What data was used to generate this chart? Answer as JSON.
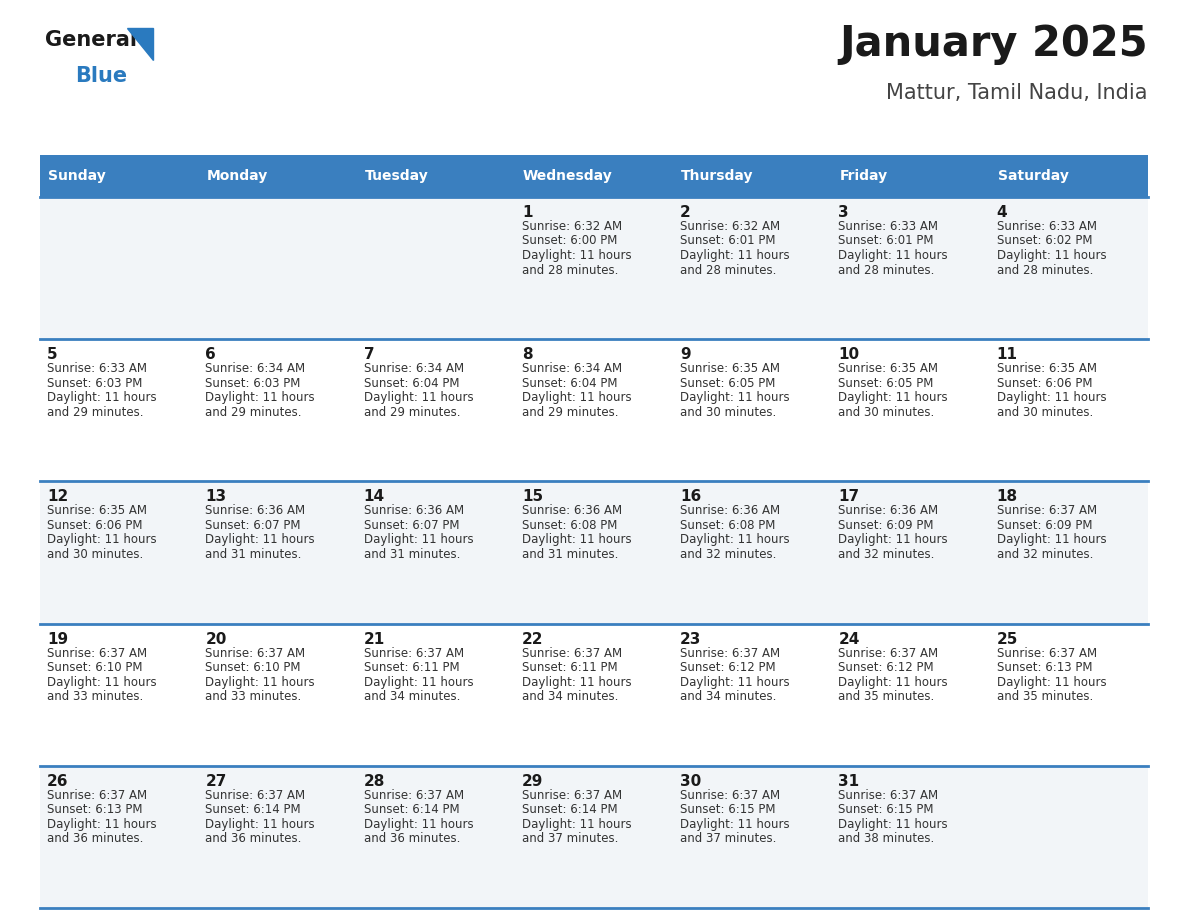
{
  "title": "January 2025",
  "subtitle": "Mattur, Tamil Nadu, India",
  "days_of_week": [
    "Sunday",
    "Monday",
    "Tuesday",
    "Wednesday",
    "Thursday",
    "Friday",
    "Saturday"
  ],
  "header_bg": "#3a7fbf",
  "header_text": "#ffffff",
  "row_bg_even": "#f2f5f8",
  "row_bg_odd": "#ffffff",
  "divider_color": "#3a7fbf",
  "day_number_color": "#1a1a1a",
  "cell_text_color": "#333333",
  "title_color": "#1a1a1a",
  "subtitle_color": "#444444",
  "logo_general_color": "#1a1a1a",
  "logo_blue_color": "#2a7abf",
  "figsize": [
    11.88,
    9.18
  ],
  "dpi": 100,
  "calendar_data": [
    [
      {
        "day": "",
        "sunrise": "",
        "sunset": "",
        "daylight": ""
      },
      {
        "day": "",
        "sunrise": "",
        "sunset": "",
        "daylight": ""
      },
      {
        "day": "",
        "sunrise": "",
        "sunset": "",
        "daylight": ""
      },
      {
        "day": "1",
        "sunrise": "6:32 AM",
        "sunset": "6:00 PM",
        "daylight": "11 hours and 28 minutes."
      },
      {
        "day": "2",
        "sunrise": "6:32 AM",
        "sunset": "6:01 PM",
        "daylight": "11 hours and 28 minutes."
      },
      {
        "day": "3",
        "sunrise": "6:33 AM",
        "sunset": "6:01 PM",
        "daylight": "11 hours and 28 minutes."
      },
      {
        "day": "4",
        "sunrise": "6:33 AM",
        "sunset": "6:02 PM",
        "daylight": "11 hours and 28 minutes."
      }
    ],
    [
      {
        "day": "5",
        "sunrise": "6:33 AM",
        "sunset": "6:03 PM",
        "daylight": "11 hours and 29 minutes."
      },
      {
        "day": "6",
        "sunrise": "6:34 AM",
        "sunset": "6:03 PM",
        "daylight": "11 hours and 29 minutes."
      },
      {
        "day": "7",
        "sunrise": "6:34 AM",
        "sunset": "6:04 PM",
        "daylight": "11 hours and 29 minutes."
      },
      {
        "day": "8",
        "sunrise": "6:34 AM",
        "sunset": "6:04 PM",
        "daylight": "11 hours and 29 minutes."
      },
      {
        "day": "9",
        "sunrise": "6:35 AM",
        "sunset": "6:05 PM",
        "daylight": "11 hours and 30 minutes."
      },
      {
        "day": "10",
        "sunrise": "6:35 AM",
        "sunset": "6:05 PM",
        "daylight": "11 hours and 30 minutes."
      },
      {
        "day": "11",
        "sunrise": "6:35 AM",
        "sunset": "6:06 PM",
        "daylight": "11 hours and 30 minutes."
      }
    ],
    [
      {
        "day": "12",
        "sunrise": "6:35 AM",
        "sunset": "6:06 PM",
        "daylight": "11 hours and 30 minutes."
      },
      {
        "day": "13",
        "sunrise": "6:36 AM",
        "sunset": "6:07 PM",
        "daylight": "11 hours and 31 minutes."
      },
      {
        "day": "14",
        "sunrise": "6:36 AM",
        "sunset": "6:07 PM",
        "daylight": "11 hours and 31 minutes."
      },
      {
        "day": "15",
        "sunrise": "6:36 AM",
        "sunset": "6:08 PM",
        "daylight": "11 hours and 31 minutes."
      },
      {
        "day": "16",
        "sunrise": "6:36 AM",
        "sunset": "6:08 PM",
        "daylight": "11 hours and 32 minutes."
      },
      {
        "day": "17",
        "sunrise": "6:36 AM",
        "sunset": "6:09 PM",
        "daylight": "11 hours and 32 minutes."
      },
      {
        "day": "18",
        "sunrise": "6:37 AM",
        "sunset": "6:09 PM",
        "daylight": "11 hours and 32 minutes."
      }
    ],
    [
      {
        "day": "19",
        "sunrise": "6:37 AM",
        "sunset": "6:10 PM",
        "daylight": "11 hours and 33 minutes."
      },
      {
        "day": "20",
        "sunrise": "6:37 AM",
        "sunset": "6:10 PM",
        "daylight": "11 hours and 33 minutes."
      },
      {
        "day": "21",
        "sunrise": "6:37 AM",
        "sunset": "6:11 PM",
        "daylight": "11 hours and 34 minutes."
      },
      {
        "day": "22",
        "sunrise": "6:37 AM",
        "sunset": "6:11 PM",
        "daylight": "11 hours and 34 minutes."
      },
      {
        "day": "23",
        "sunrise": "6:37 AM",
        "sunset": "6:12 PM",
        "daylight": "11 hours and 34 minutes."
      },
      {
        "day": "24",
        "sunrise": "6:37 AM",
        "sunset": "6:12 PM",
        "daylight": "11 hours and 35 minutes."
      },
      {
        "day": "25",
        "sunrise": "6:37 AM",
        "sunset": "6:13 PM",
        "daylight": "11 hours and 35 minutes."
      }
    ],
    [
      {
        "day": "26",
        "sunrise": "6:37 AM",
        "sunset": "6:13 PM",
        "daylight": "11 hours and 36 minutes."
      },
      {
        "day": "27",
        "sunrise": "6:37 AM",
        "sunset": "6:14 PM",
        "daylight": "11 hours and 36 minutes."
      },
      {
        "day": "28",
        "sunrise": "6:37 AM",
        "sunset": "6:14 PM",
        "daylight": "11 hours and 36 minutes."
      },
      {
        "day": "29",
        "sunrise": "6:37 AM",
        "sunset": "6:14 PM",
        "daylight": "11 hours and 37 minutes."
      },
      {
        "day": "30",
        "sunrise": "6:37 AM",
        "sunset": "6:15 PM",
        "daylight": "11 hours and 37 minutes."
      },
      {
        "day": "31",
        "sunrise": "6:37 AM",
        "sunset": "6:15 PM",
        "daylight": "11 hours and 38 minutes."
      },
      {
        "day": "",
        "sunrise": "",
        "sunset": "",
        "daylight": ""
      }
    ]
  ]
}
